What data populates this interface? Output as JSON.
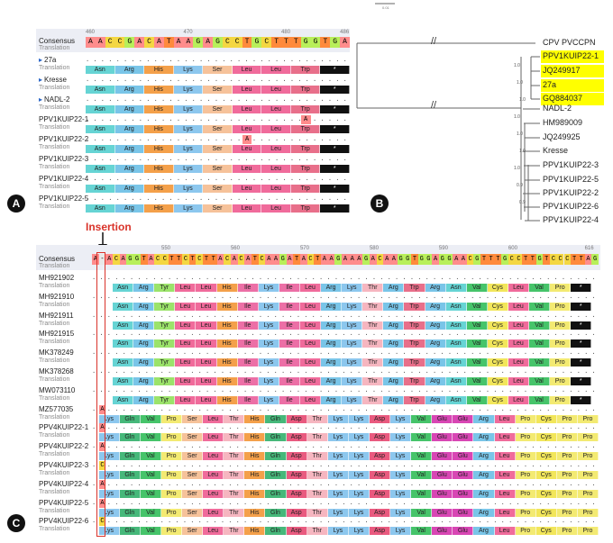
{
  "panel_a": {
    "letter": "A",
    "consensus_label": "Consensus",
    "translation_label": "Translation",
    "ticks": [
      "460",
      "470",
      "480",
      "486"
    ],
    "sequence": "AACCGACATAAGAGCCTGCTTTGGTGA",
    "rows": [
      {
        "name": "27a",
        "sub": "Translation",
        "ref": true,
        "mut": null
      },
      {
        "name": "Kresse",
        "sub": "Translation",
        "ref": true,
        "mut": null
      },
      {
        "name": "NADL-2",
        "sub": "Translation",
        "ref": true,
        "mut": null
      },
      {
        "name": "PPV1KUIP22-1",
        "sub": "Translation",
        "ref": false,
        "mut": "A"
      },
      {
        "name": "PPV1KUIP22-2",
        "sub": "Translation",
        "ref": false,
        "mut": "A"
      },
      {
        "name": "PPV1KUIP22-3",
        "sub": "Translation",
        "ref": false,
        "mut": null
      },
      {
        "name": "PPV1KUIP22-4",
        "sub": "Translation",
        "ref": false,
        "mut": null
      },
      {
        "name": "PPV1KUIP22-5",
        "sub": "Translation",
        "ref": false,
        "mut": null
      }
    ],
    "amino_acids": [
      "Asn",
      "Arg",
      "His",
      "Lys",
      "Ser",
      "Leu",
      "Leu",
      "Trp",
      "*"
    ]
  },
  "panel_b": {
    "letter": "B",
    "scale": "0.01",
    "break_marks": [
      "//",
      "//"
    ],
    "top_leaf": "CPV PVCCPN",
    "highlighted_leaves": [
      "PPV1KUIP22-1",
      "JQ249917",
      "27a",
      "GQ884037"
    ],
    "other_leaves": [
      "NADL-2",
      "HM989009",
      "JQ249925",
      "Kresse",
      "PPV1KUIP22-3",
      "PPV1KUIP22-5",
      "PPV1KUIP22-2",
      "PPV1KUIP22-6",
      "PPV1KUIP22-4"
    ],
    "bootstrap": [
      "1.0",
      "1.0",
      "1.0",
      "1.0",
      "1.0",
      "1.0",
      "1.0",
      "0.9",
      "0.9"
    ]
  },
  "panel_c": {
    "letter": "C",
    "insertion_label": "Insertion",
    "consensus_label": "Consensus",
    "translation_label": "Translation",
    "ticks": [
      "550",
      "560",
      "570",
      "580",
      "590",
      "600",
      "616"
    ],
    "sequence": "A-ACAGGTACCTTCTCTTACACATCAAGATACTAAGAAAGACAAGGTGGAGGAACGTTTGCCTTGTCCCTTAG",
    "rows_a": [
      {
        "name": "MH921902",
        "sub": "Translation"
      },
      {
        "name": "MH921910",
        "sub": "Translation"
      },
      {
        "name": "MH921911",
        "sub": "Translation"
      },
      {
        "name": "MH921915",
        "sub": "Translation"
      },
      {
        "name": "MK378249",
        "sub": "Translation"
      },
      {
        "name": "MK378268",
        "sub": "Translation"
      },
      {
        "name": "MW073110",
        "sub": "Translation"
      }
    ],
    "rows_b": [
      {
        "name": "MZ577035",
        "sub": "Translation",
        "mut": "A"
      },
      {
        "name": "PPV4KUIP22-1",
        "sub": "Translation",
        "mut": "A"
      },
      {
        "name": "PPV4KUIP22-2",
        "sub": "Translation",
        "mut": "A"
      },
      {
        "name": "PPV4KUIP22-3",
        "sub": "Translation",
        "mut": "C"
      },
      {
        "name": "PPV4KUIP22-4",
        "sub": "Translation",
        "mut": "A"
      },
      {
        "name": "PPV4KUIP22-5",
        "sub": "Translation",
        "mut": "A"
      },
      {
        "name": "PPV4KUIP22-6",
        "sub": "Translation",
        "mut": "C"
      }
    ],
    "aa_a": [
      "Asn",
      "Arg",
      "Tyr",
      "Leu",
      "Leu",
      "His",
      "Ile",
      "Lys",
      "Ile",
      "Leu",
      "Arg",
      "Lys",
      "Thr",
      "Arg",
      "Trp",
      "Arg",
      "Asn",
      "Val",
      "Cys",
      "Leu",
      "Val",
      "Pro",
      "*"
    ],
    "aa_b": [
      "Lys",
      "Gln",
      "Val",
      "Pro",
      "Ser",
      "Leu",
      "Thr",
      "His",
      "Gln",
      "Asp",
      "Thr",
      "Lys",
      "Lys",
      "Asp",
      "Lys",
      "Val",
      "Glu",
      "Glu",
      "Arg",
      "Leu",
      "Pro",
      "Cys",
      "Pro",
      "Pro"
    ]
  },
  "colors": {
    "A": "#ff8c8c",
    "C": "#f4d742",
    "G": "#b8ef5a",
    "T": "#ff8a3c",
    "-": "#e8e8e8",
    "Asn": "#66d4d4",
    "Arg": "#79c5e8",
    "His": "#f4a04a",
    "Lys": "#8cc7ee",
    "Ser": "#f6c29a",
    "Leu": "#f06b9b",
    "Trp": "#e86f8a",
    "*": "#111111",
    "Tyr": "#9be36a",
    "Ile": "#ec6fa6",
    "Thr": "#f6b6c0",
    "Val": "#46c46a",
    "Cys": "#f2e65a",
    "Pro": "#f3ea72",
    "Gln": "#46b87a",
    "Asp": "#e95a7f",
    "Glu": "#d846b4",
    "highlight": "#ffff00",
    "insertion": "#d9332a"
  }
}
